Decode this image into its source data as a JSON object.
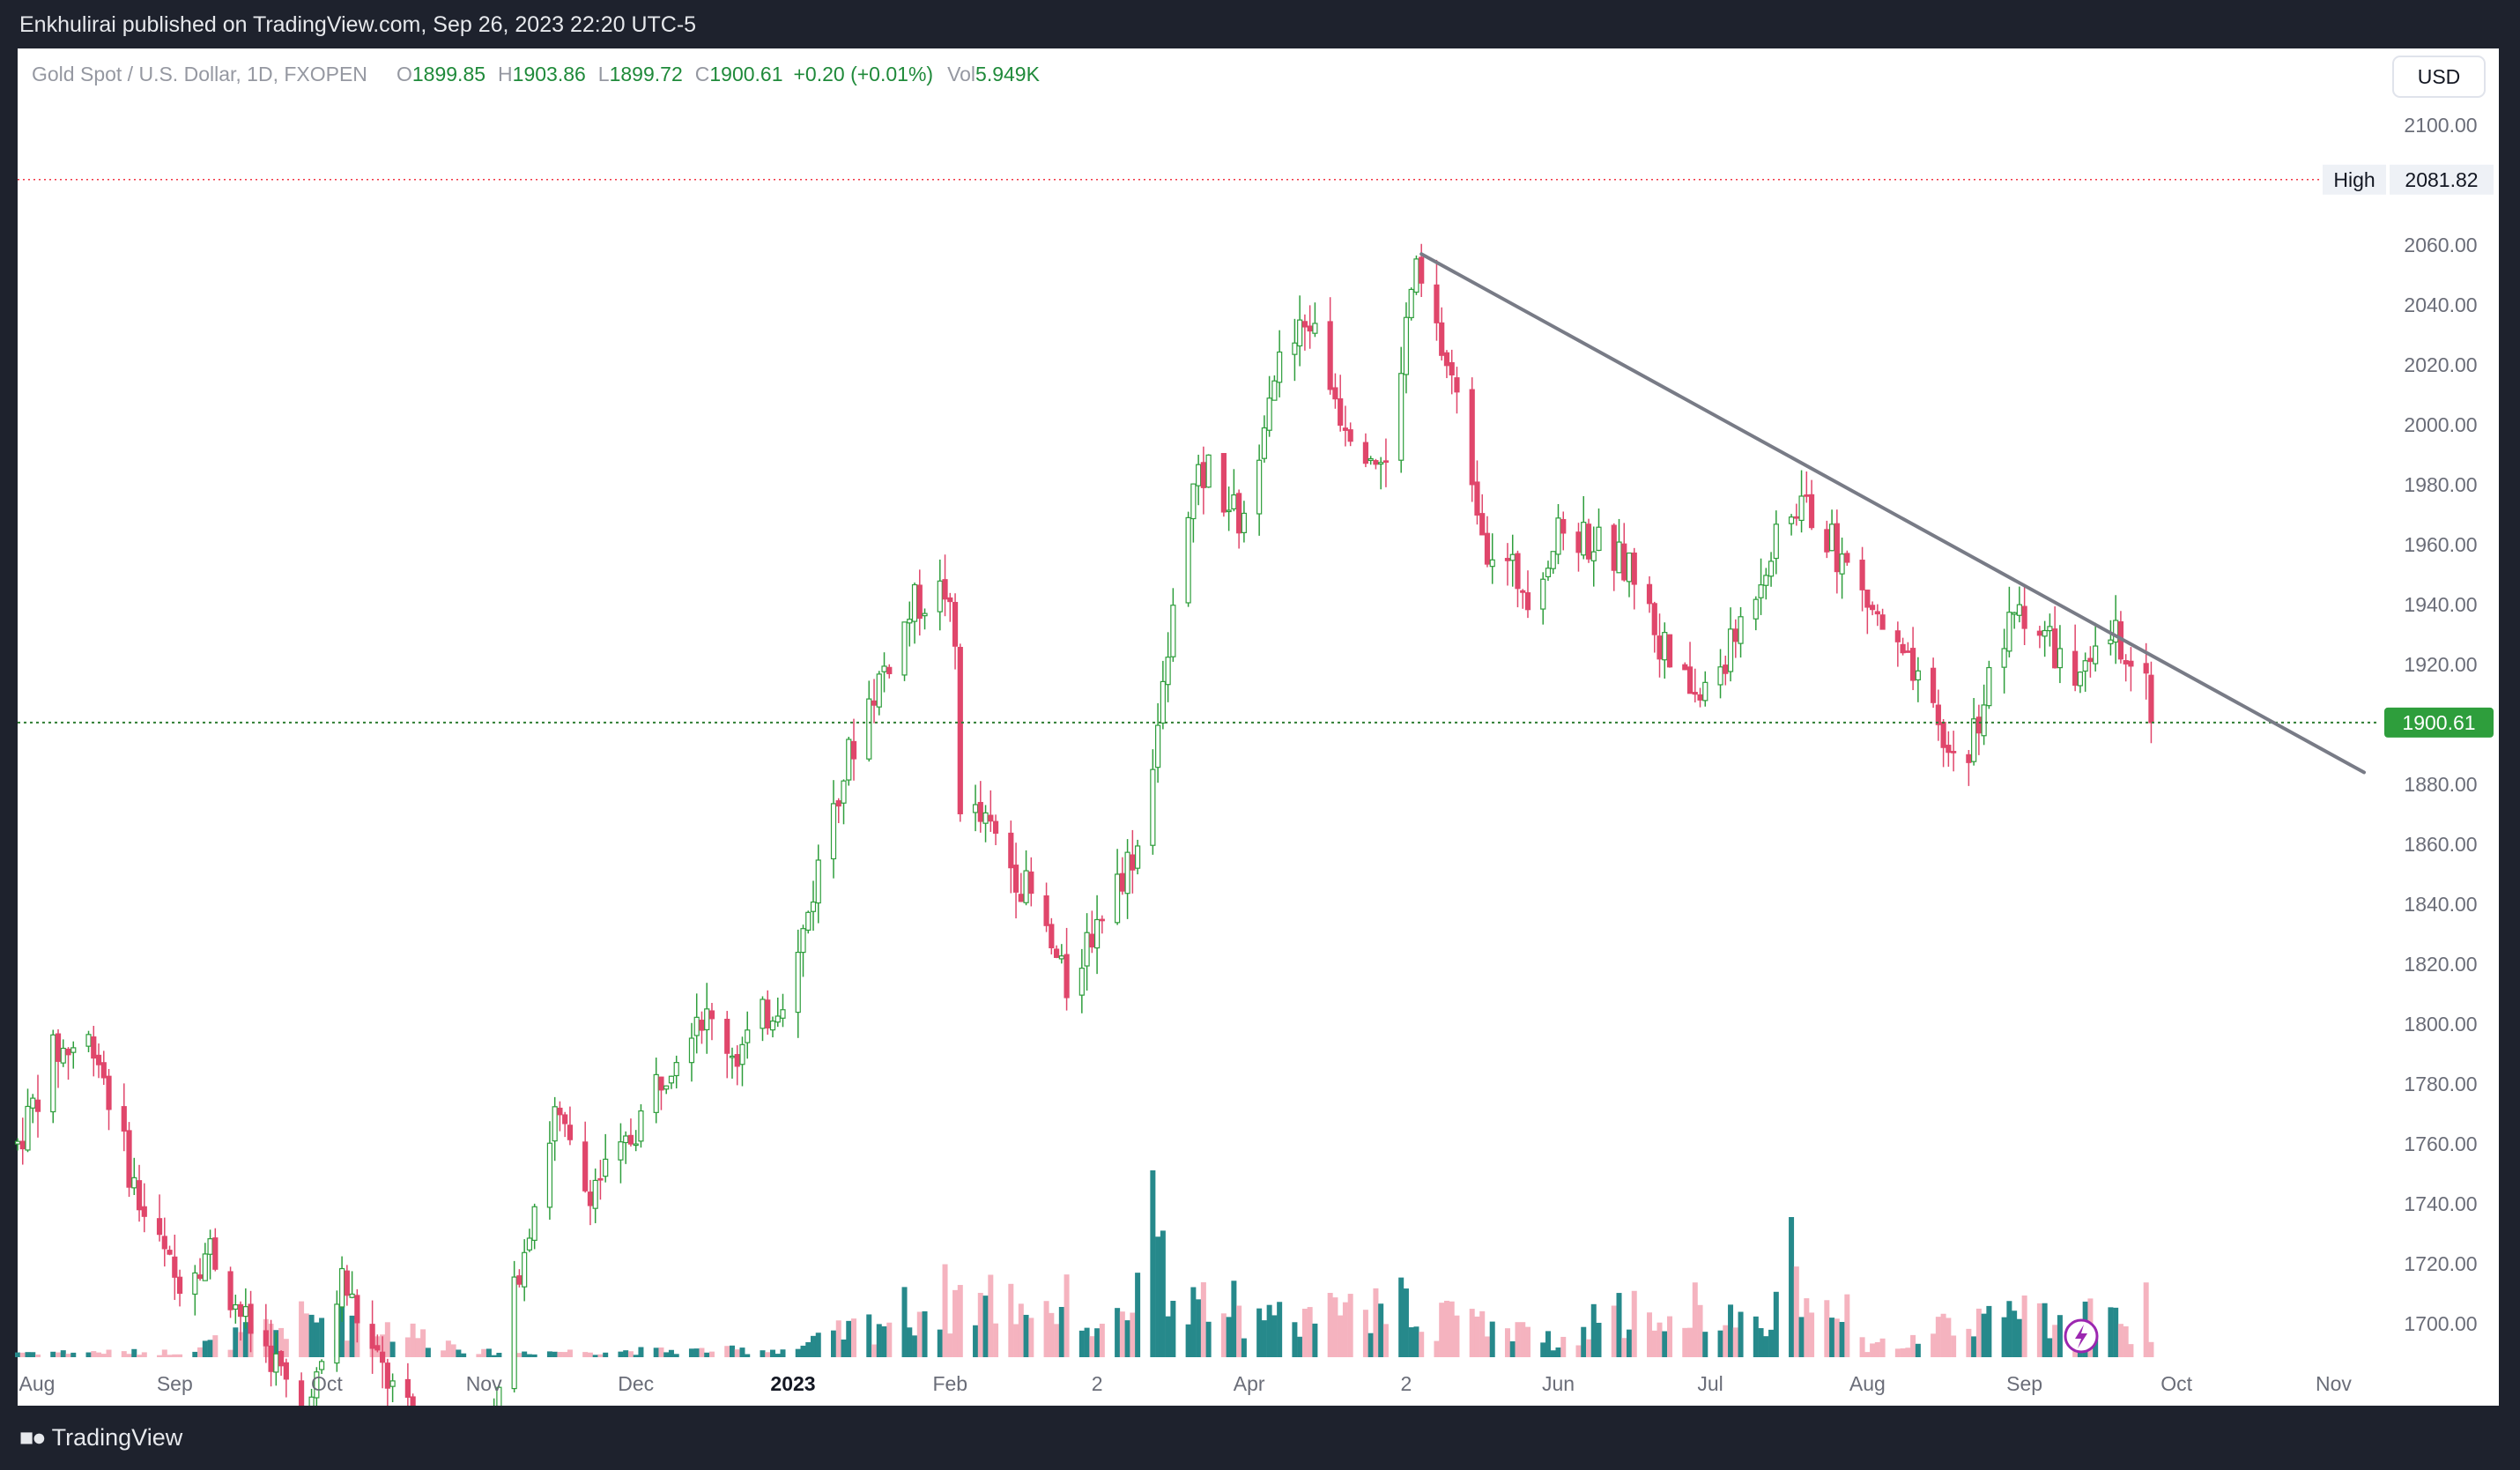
{
  "header": {
    "published": "Enkhulirai published on TradingView.com, Sep 26, 2023 22:20 UTC-5"
  },
  "legend": {
    "symbol": "Gold Spot / U.S. Dollar, 1D, FXOPEN",
    "o_label": "O",
    "o_value": "1899.85",
    "h_label": "H",
    "h_value": "1903.86",
    "l_label": "L",
    "l_value": "1899.72",
    "c_label": "C",
    "c_value": "1900.61",
    "change": "+0.20 (+0.01%)",
    "vol_label": "Vol",
    "vol_value": "5.949K"
  },
  "currency_button": "USD",
  "high_marker": {
    "label": "High",
    "value": "2081.82"
  },
  "last_price": "1900.61",
  "footer": {
    "brand": "TradingView"
  },
  "colors": {
    "up": "#26a69a",
    "up_body": "#2e9e3c",
    "down": "#e0466b",
    "vol_up": "#26898b",
    "vol_down": "#f5b3bf",
    "trendline": "#787b86",
    "high_line": "#f23645",
    "price_line": "#2e7d32",
    "last_price_bg": "#2e9e3c"
  },
  "chart_data": {
    "type": "candlestick",
    "instrument": "Gold Spot / U.S. Dollar, 1D, FXOPEN",
    "y_axis_ticks": [
      2100,
      2060,
      2040,
      2020,
      2000,
      1980,
      1960,
      1940,
      1920,
      1880,
      1860,
      1840,
      1820,
      1800,
      1780,
      1760,
      1740,
      1720,
      1700
    ],
    "y_axis_tick_labels": [
      "2100.00",
      "2060.00",
      "2040.00",
      "2020.00",
      "2000.00",
      "1980.00",
      "1960.00",
      "1940.00",
      "1920.00",
      "1880.00",
      "1860.00",
      "1840.00",
      "1820.00",
      "1800.00",
      "1780.00",
      "1760.00",
      "1740.00",
      "1720.00",
      "1700.00"
    ],
    "ylim": [
      1690,
      2110
    ],
    "x_axis_labels": [
      {
        "label": "Aug",
        "date": "2022-08-01"
      },
      {
        "label": "Sep",
        "date": "2022-09-01"
      },
      {
        "label": "Oct",
        "date": "2022-10-01"
      },
      {
        "label": "Nov",
        "date": "2022-11-01"
      },
      {
        "label": "Dec",
        "date": "2022-12-01"
      },
      {
        "label": "2023",
        "date": "2023-01-01"
      },
      {
        "label": "Feb",
        "date": "2023-02-01"
      },
      {
        "label": "2",
        "date": "2023-03-02"
      },
      {
        "label": "Apr",
        "date": "2023-04-01"
      },
      {
        "label": "2",
        "date": "2023-05-02"
      },
      {
        "label": "Jun",
        "date": "2023-06-01"
      },
      {
        "label": "Jul",
        "date": "2023-07-01"
      },
      {
        "label": "Aug",
        "date": "2023-08-01"
      },
      {
        "label": "Sep",
        "date": "2023-09-01"
      },
      {
        "label": "Oct",
        "date": "2023-10-01"
      },
      {
        "label": "Nov",
        "date": "2023-11-01"
      }
    ],
    "x_range": [
      "2022-08-01",
      "2023-11-11"
    ],
    "price_path": [
      [
        "2022-08-01",
        1760
      ],
      [
        "2022-08-08",
        1790
      ],
      [
        "2022-08-16",
        1795
      ],
      [
        "2022-08-25",
        1740
      ],
      [
        "2022-09-01",
        1715
      ],
      [
        "2022-09-08",
        1725
      ],
      [
        "2022-09-15",
        1700
      ],
      [
        "2022-09-20",
        1690
      ],
      [
        "2022-09-27",
        1665
      ],
      [
        "2022-10-04",
        1715
      ],
      [
        "2022-10-10",
        1690
      ],
      [
        "2022-10-20",
        1660
      ],
      [
        "2022-11-01",
        1645
      ],
      [
        "2022-11-08",
        1720
      ],
      [
        "2022-11-15",
        1770
      ],
      [
        "2022-11-21",
        1745
      ],
      [
        "2022-11-28",
        1755
      ],
      [
        "2022-12-05",
        1780
      ],
      [
        "2022-12-13",
        1805
      ],
      [
        "2022-12-21",
        1790
      ],
      [
        "2023-01-01",
        1815
      ],
      [
        "2023-01-09",
        1875
      ],
      [
        "2023-01-16",
        1908
      ],
      [
        "2023-01-25",
        1940
      ],
      [
        "2023-01-31",
        1945
      ],
      [
        "2023-02-02",
        1925
      ],
      [
        "2023-02-03",
        1875
      ],
      [
        "2023-02-10",
        1862
      ],
      [
        "2023-02-17",
        1842
      ],
      [
        "2023-02-24",
        1812
      ],
      [
        "2023-02-28",
        1828
      ],
      [
        "2023-03-06",
        1848
      ],
      [
        "2023-03-10",
        1860
      ],
      [
        "2023-03-15",
        1910
      ],
      [
        "2023-03-20",
        1975
      ],
      [
        "2023-03-24",
        1985
      ],
      [
        "2023-03-31",
        1965
      ],
      [
        "2023-04-05",
        2015
      ],
      [
        "2023-04-13",
        2035
      ],
      [
        "2023-04-19",
        2005
      ],
      [
        "2023-04-28",
        1985
      ],
      [
        "2023-05-03",
        2045
      ],
      [
        "2023-05-04",
        2050
      ],
      [
        "2023-05-11",
        2015
      ],
      [
        "2023-05-18",
        1960
      ],
      [
        "2023-05-26",
        1945
      ],
      [
        "2023-06-02",
        1965
      ],
      [
        "2023-06-09",
        1960
      ],
      [
        "2023-06-16",
        1950
      ],
      [
        "2023-06-23",
        1920
      ],
      [
        "2023-06-29",
        1908
      ],
      [
        "2023-07-05",
        1925
      ],
      [
        "2023-07-12",
        1955
      ],
      [
        "2023-07-19",
        1975
      ],
      [
        "2023-07-27",
        1955
      ],
      [
        "2023-08-03",
        1935
      ],
      [
        "2023-08-10",
        1915
      ],
      [
        "2023-08-17",
        1890
      ],
      [
        "2023-08-21",
        1892
      ],
      [
        "2023-08-25",
        1915
      ],
      [
        "2023-08-31",
        1940
      ],
      [
        "2023-09-05",
        1930
      ],
      [
        "2023-09-12",
        1912
      ],
      [
        "2023-09-18",
        1930
      ],
      [
        "2023-09-22",
        1925
      ],
      [
        "2023-09-25",
        1915
      ],
      [
        "2023-09-26",
        1900.61
      ]
    ],
    "volume_path": [
      [
        "2022-08-01",
        1.0
      ],
      [
        "2022-09-01",
        1.0
      ],
      [
        "2022-10-03",
        8.5
      ],
      [
        "2022-11-01",
        1.0
      ],
      [
        "2023-01-01",
        1.5
      ],
      [
        "2023-02-02",
        12.0
      ],
      [
        "2023-02-24",
        10.0
      ],
      [
        "2023-03-08",
        17.0
      ],
      [
        "2023-03-13",
        40.0
      ],
      [
        "2023-04-01",
        6.0
      ],
      [
        "2023-05-02",
        10.0
      ],
      [
        "2023-06-01",
        3.0
      ],
      [
        "2023-06-28",
        16.0
      ],
      [
        "2023-07-14",
        14.0
      ],
      [
        "2023-07-17",
        30.0
      ],
      [
        "2023-08-01",
        2.5
      ],
      [
        "2023-08-28",
        8.0
      ],
      [
        "2023-09-22",
        7.0
      ],
      [
        "2023-09-25",
        16.0
      ],
      [
        "2023-09-26",
        4.0
      ]
    ],
    "high_price": 2081.82,
    "last_close": 1900.61,
    "trendline": {
      "from": [
        "2023-05-05",
        2057
      ],
      "to": [
        "2023-11-07",
        1884
      ]
    },
    "grid": false
  }
}
